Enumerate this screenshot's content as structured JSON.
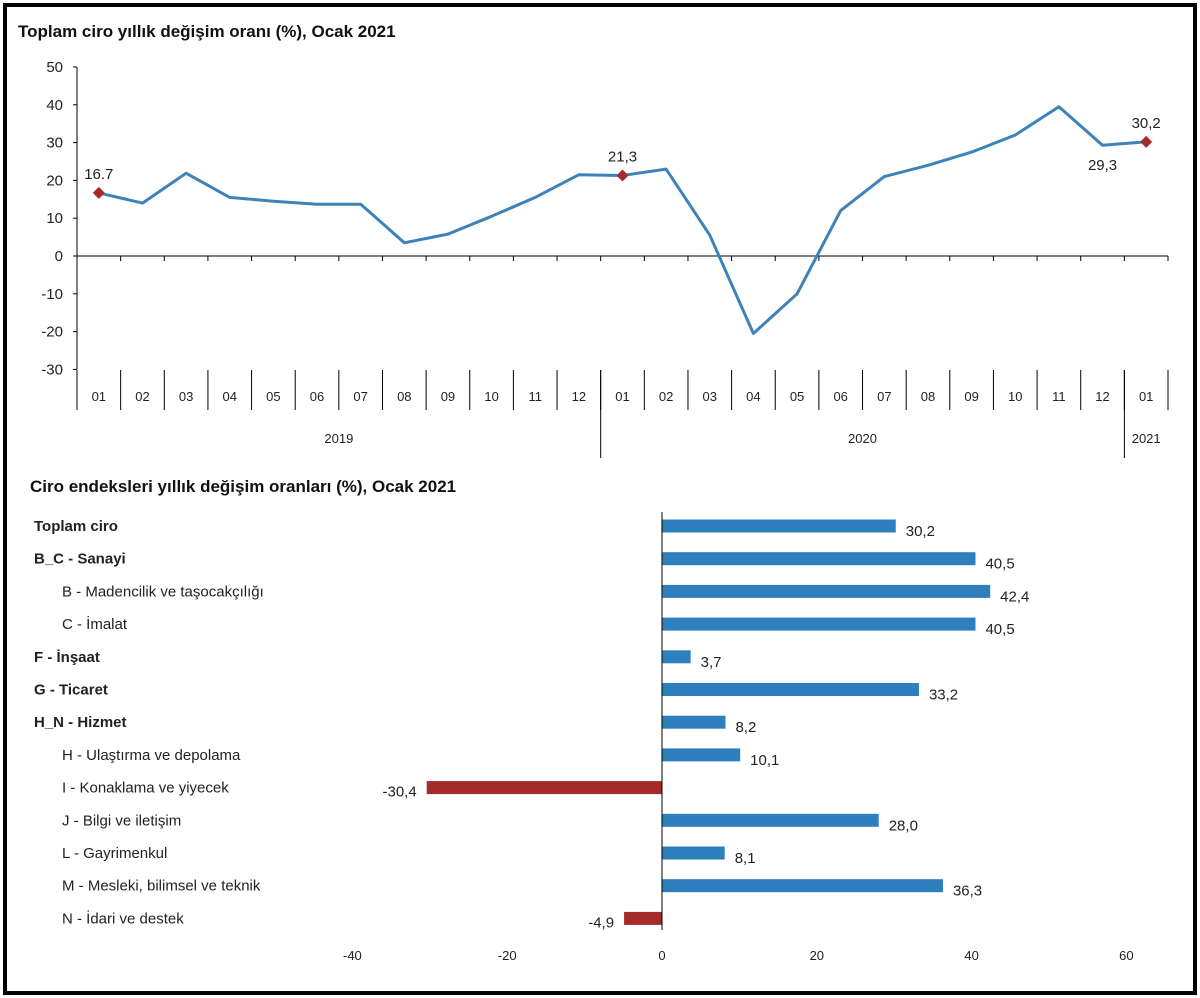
{
  "colors": {
    "line": "#3d82b8",
    "marker": "#a52a2a",
    "bar_positive": "#2e7fbe",
    "bar_negative": "#a52a2a",
    "axis": "#000000",
    "text": "#222222"
  },
  "chart_data": [
    {
      "type": "line",
      "title": "Toplam ciro yıllık değişim oranı (%), Ocak 2021",
      "xlabel": "",
      "ylabel": "",
      "ylim": [
        -30,
        50
      ],
      "yticks": [
        50,
        40,
        30,
        20,
        10,
        0,
        -10,
        -20,
        -30
      ],
      "grid": false,
      "legend": "none",
      "categories": [
        "01",
        "02",
        "03",
        "04",
        "05",
        "06",
        "07",
        "08",
        "09",
        "10",
        "11",
        "12",
        "01",
        "02",
        "03",
        "04",
        "05",
        "06",
        "07",
        "08",
        "09",
        "10",
        "11",
        "12",
        "01"
      ],
      "year_groups": [
        {
          "label": "2019",
          "start": 0,
          "end": 11
        },
        {
          "label": "2020",
          "start": 12,
          "end": 23
        },
        {
          "label": "2021",
          "start": 24,
          "end": 24
        }
      ],
      "series": [
        {
          "values": [
            16.7,
            14.0,
            21.9,
            15.5,
            14.5,
            13.7,
            13.7,
            3.5,
            5.8,
            10.5,
            15.5,
            21.5,
            21.3,
            23.0,
            5.5,
            -20.5,
            -10.0,
            12.0,
            21.0,
            24.0,
            27.5,
            32.0,
            39.5,
            29.3,
            30.2
          ]
        }
      ],
      "highlighted": [
        {
          "index": 0,
          "label": "16.7",
          "marker": true
        },
        {
          "index": 12,
          "label": "21,3",
          "marker": true
        },
        {
          "index": 23,
          "label": "29,3",
          "marker": false
        },
        {
          "index": 24,
          "label": "30,2",
          "marker": true
        }
      ]
    },
    {
      "type": "bar",
      "orientation": "horizontal",
      "title": "Ciro endeksleri yıllık değişim oranları (%), Ocak 2021",
      "xlabel": "",
      "ylabel": "",
      "xlim": [
        -40,
        60
      ],
      "xticks": [
        -40,
        -20,
        0,
        20,
        40,
        60
      ],
      "grid": false,
      "legend": "none",
      "categories": [
        {
          "label": "Toplam ciro",
          "bold": true,
          "indent": 0
        },
        {
          "label": "B_C - Sanayi",
          "bold": true,
          "indent": 0
        },
        {
          "label": "B - Madencilik ve taşocakçılığı",
          "bold": false,
          "indent": 1
        },
        {
          "label": "C - İmalat",
          "bold": false,
          "indent": 1
        },
        {
          "label": "F - İnşaat",
          "bold": true,
          "indent": 0
        },
        {
          "label": "G - Ticaret",
          "bold": true,
          "indent": 0
        },
        {
          "label": "H_N - Hizmet",
          "bold": true,
          "indent": 0
        },
        {
          "label": "H - Ulaştırma ve depolama",
          "bold": false,
          "indent": 1
        },
        {
          "label": "I - Konaklama ve yiyecek",
          "bold": false,
          "indent": 1
        },
        {
          "label": "J - Bilgi ve iletişim",
          "bold": false,
          "indent": 1
        },
        {
          "label": "L - Gayrimenkul",
          "bold": false,
          "indent": 1
        },
        {
          "label": "M - Mesleki, bilimsel ve teknik",
          "bold": false,
          "indent": 1
        },
        {
          "label": "N - İdari ve destek",
          "bold": false,
          "indent": 1
        }
      ],
      "values": [
        30.2,
        40.5,
        42.4,
        40.5,
        3.7,
        33.2,
        8.2,
        10.1,
        -30.4,
        28.0,
        8.1,
        36.3,
        -4.9
      ],
      "value_labels": [
        "30,2",
        "40,5",
        "42,4",
        "40,5",
        "3,7",
        "33,2",
        "8,2",
        "10,1",
        "-30,4",
        "28,0",
        "8,1",
        "36,3",
        "-4,9"
      ]
    }
  ]
}
